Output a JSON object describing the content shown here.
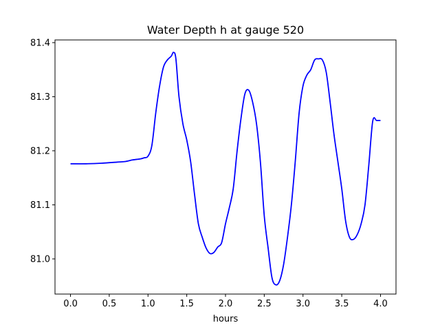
{
  "chart_data": {
    "type": "line",
    "title": "Water Depth h at gauge 520",
    "xlabel": "hours",
    "ylabel": "",
    "xlim": [
      -0.2,
      4.2
    ],
    "ylim": [
      80.935,
      81.405
    ],
    "x_ticks": [
      0.0,
      0.5,
      1.0,
      1.5,
      2.0,
      2.5,
      3.0,
      3.5,
      4.0
    ],
    "x_tick_labels": [
      "0.0",
      "0.5",
      "1.0",
      "1.5",
      "2.0",
      "2.5",
      "3.0",
      "3.5",
      "4.0"
    ],
    "y_ticks": [
      81.0,
      81.1,
      81.2,
      81.3,
      81.4
    ],
    "y_tick_labels": [
      "81.0",
      "81.1",
      "81.2",
      "81.3",
      "81.4"
    ],
    "grid": false,
    "series": [
      {
        "color": "#0000ff",
        "x": [
          0.0,
          0.2,
          0.4,
          0.6,
          0.7,
          0.8,
          0.9,
          0.95,
          1.0,
          1.05,
          1.1,
          1.15,
          1.2,
          1.25,
          1.3,
          1.33,
          1.36,
          1.4,
          1.45,
          1.5,
          1.55,
          1.6,
          1.65,
          1.7,
          1.75,
          1.8,
          1.85,
          1.9,
          1.95,
          2.0,
          2.05,
          2.1,
          2.15,
          2.2,
          2.25,
          2.3,
          2.35,
          2.4,
          2.45,
          2.5,
          2.55,
          2.6,
          2.65,
          2.7,
          2.75,
          2.8,
          2.85,
          2.9,
          2.95,
          3.0,
          3.05,
          3.1,
          3.15,
          3.2,
          3.25,
          3.3,
          3.35,
          3.4,
          3.45,
          3.5,
          3.55,
          3.6,
          3.65,
          3.7,
          3.75,
          3.8,
          3.85,
          3.9,
          3.95,
          4.0
        ],
        "y": [
          81.176,
          81.176,
          81.177,
          81.179,
          81.18,
          81.183,
          81.185,
          81.187,
          81.19,
          81.21,
          81.27,
          81.32,
          81.355,
          81.368,
          81.375,
          81.382,
          81.37,
          81.3,
          81.25,
          81.22,
          81.18,
          81.12,
          81.065,
          81.04,
          81.02,
          81.01,
          81.012,
          81.022,
          81.03,
          81.065,
          81.095,
          81.13,
          81.2,
          81.26,
          81.305,
          81.312,
          81.29,
          81.25,
          81.18,
          81.08,
          81.02,
          80.965,
          80.952,
          80.96,
          80.99,
          81.04,
          81.1,
          81.18,
          81.27,
          81.32,
          81.34,
          81.35,
          81.368,
          81.37,
          81.368,
          81.345,
          81.29,
          81.23,
          81.18,
          81.13,
          81.07,
          81.04,
          81.036,
          81.045,
          81.065,
          81.1,
          81.175,
          81.255,
          81.256,
          81.256
        ]
      }
    ]
  }
}
